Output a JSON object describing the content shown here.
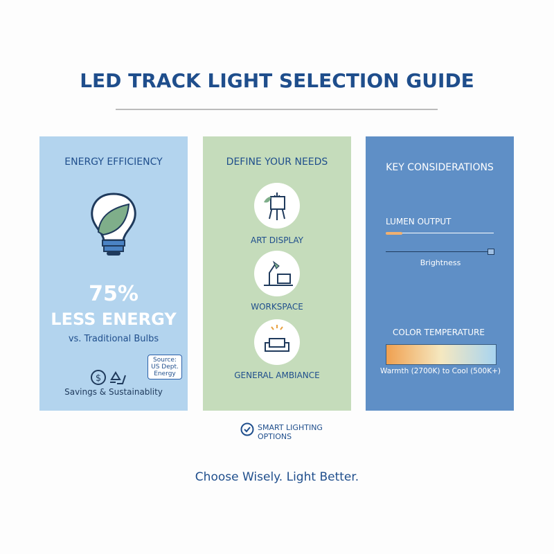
{
  "title": "LED TRACK LIGHT SELECTION GUIDE",
  "panels": [
    {
      "heading": "ENERGY EFFICIENCY",
      "stat": "75%",
      "stat_label": "LESS ENERGY",
      "comparison": "vs. Traditional Bulbs",
      "source": "Source: US Dept. Energy",
      "footer": "Savings & Sustainablity"
    },
    {
      "heading": "DEFINE YOUR NEEDS",
      "items": [
        "ART DISPLAY",
        "WORKSPACE",
        "GENERAL AMBIANCE"
      ]
    },
    {
      "heading": "KEY CONSIDERATIONS",
      "lumen_title": "LUMEN OUTPUT",
      "lumen_caption": "Brightness",
      "color_title": "COLOR TEMPERATURE",
      "color_caption": "Warmth (2700K) to Cool (500K+)"
    }
  ],
  "note": "SMART LIGHTING OPTIONS",
  "tagline": "Choose Wisely. Light Better."
}
